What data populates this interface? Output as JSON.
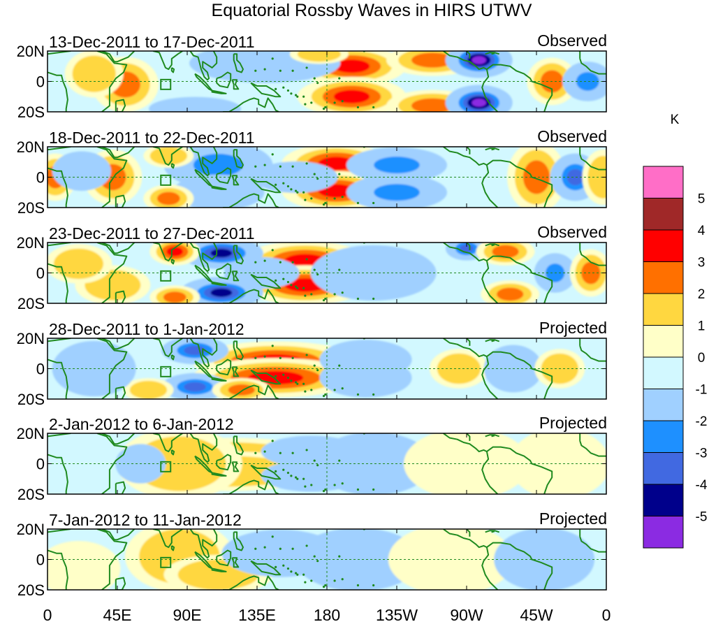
{
  "title": "Equatorial Rossby Waves in HIRS UTWV",
  "latitude_labels": [
    "20N",
    "0",
    "20S"
  ],
  "longitude_labels": [
    "0",
    "45E",
    "90E",
    "135E",
    "180",
    "135W",
    "90W",
    "45W",
    "0"
  ],
  "panels": [
    {
      "dates": "13-Dec-2011 to 17-Dec-2011",
      "status": "Observed"
    },
    {
      "dates": "18-Dec-2011 to 22-Dec-2011",
      "status": "Observed"
    },
    {
      "dates": "23-Dec-2011 to 27-Dec-2011",
      "status": "Observed"
    },
    {
      "dates": "28-Dec-2011 to 1-Jan-2012",
      "status": "Projected"
    },
    {
      "dates": "2-Jan-2012 to 6-Jan-2012",
      "status": "Projected"
    },
    {
      "dates": "7-Jan-2012 to 11-Jan-2012",
      "status": "Projected"
    }
  ],
  "colorbar": {
    "unit": "K",
    "tick_labels": [
      "5",
      "4",
      "3",
      "2",
      "1",
      "0",
      "-1",
      "-2",
      "-3",
      "-4",
      "-5"
    ],
    "levels": [
      {
        "color": "#ff6ec7"
      },
      {
        "color": "#a02828"
      },
      {
        "color": "#ff0000"
      },
      {
        "color": "#ff7000"
      },
      {
        "color": "#ffd740"
      },
      {
        "color": "#ffffc8"
      },
      {
        "color": "#d2f8ff"
      },
      {
        "color": "#a0d0ff"
      },
      {
        "color": "#1e90ff"
      },
      {
        "color": "#4169e1"
      },
      {
        "color": "#00008b"
      },
      {
        "color": "#8b2be2"
      }
    ]
  },
  "chart_data": {
    "type": "heatmap",
    "title": "Equatorial Rossby Waves in HIRS UTWV",
    "units": "K",
    "lon_range": [
      0,
      360
    ],
    "lat_range": [
      -20,
      20
    ],
    "contour_levels": [
      -5,
      -4,
      -3,
      -2,
      -1,
      0,
      1,
      2,
      3,
      4,
      5
    ],
    "anomaly_centers_note": "approximate centers of anomaly blobs: lon (deg east), lat (deg), value (K), width/height in degrees",
    "panels": [
      {
        "label": "13-Dec-2011 to 17-Dec-2011",
        "status": "Observed",
        "blobs": [
          {
            "lon": 196,
            "lat": 10,
            "v": 3.4,
            "w": 26,
            "h": 10
          },
          {
            "lon": 196,
            "lat": -10,
            "v": 3.3,
            "w": 26,
            "h": 10
          },
          {
            "lon": 248,
            "lat": 14,
            "v": 2.2,
            "w": 22,
            "h": 8
          },
          {
            "lon": 248,
            "lat": -16,
            "v": 2.0,
            "w": 22,
            "h": 8
          },
          {
            "lon": 278,
            "lat": 14,
            "v": -5,
            "w": 16,
            "h": 9
          },
          {
            "lon": 278,
            "lat": -14,
            "v": -5,
            "w": 16,
            "h": 9
          },
          {
            "lon": 325,
            "lat": 0,
            "v": 2.5,
            "w": 12,
            "h": 12
          },
          {
            "lon": 348,
            "lat": 0,
            "v": -2.2,
            "w": 12,
            "h": 10
          },
          {
            "lon": 50,
            "lat": -2,
            "v": 2.6,
            "w": 16,
            "h": 14
          },
          {
            "lon": 30,
            "lat": 5,
            "v": 1.3,
            "w": 14,
            "h": 12
          },
          {
            "lon": 95,
            "lat": -18,
            "v": -1.4,
            "w": 22,
            "h": 6
          },
          {
            "lon": 140,
            "lat": 12,
            "v": -1.2,
            "w": 36,
            "h": 10
          },
          {
            "lon": 175,
            "lat": 18,
            "v": 1.2,
            "w": 14,
            "h": 5
          }
        ]
      },
      {
        "label": "18-Dec-2011 to 22-Dec-2011",
        "status": "Observed",
        "blobs": [
          {
            "lon": 186,
            "lat": 9,
            "v": 3.6,
            "w": 26,
            "h": 10
          },
          {
            "lon": 186,
            "lat": -9,
            "v": 3.5,
            "w": 26,
            "h": 10
          },
          {
            "lon": 160,
            "lat": 0,
            "v": -1.5,
            "w": 20,
            "h": 8
          },
          {
            "lon": 225,
            "lat": 8,
            "v": -2.2,
            "w": 24,
            "h": 9
          },
          {
            "lon": 225,
            "lat": -10,
            "v": -2.3,
            "w": 24,
            "h": 9
          },
          {
            "lon": 315,
            "lat": 0,
            "v": 2.2,
            "w": 14,
            "h": 18
          },
          {
            "lon": 340,
            "lat": 0,
            "v": -3.2,
            "w": 12,
            "h": 12
          },
          {
            "lon": 358,
            "lat": 0,
            "v": 1.8,
            "w": 10,
            "h": 14
          },
          {
            "lon": 42,
            "lat": 0,
            "v": 2.4,
            "w": 14,
            "h": 14
          },
          {
            "lon": 5,
            "lat": 0,
            "v": 2.0,
            "w": 10,
            "h": 12
          },
          {
            "lon": 22,
            "lat": 4,
            "v": -1.4,
            "w": 14,
            "h": 10
          },
          {
            "lon": 110,
            "lat": 8,
            "v": -2.2,
            "w": 26,
            "h": 12
          },
          {
            "lon": 110,
            "lat": -10,
            "v": -1.8,
            "w": 22,
            "h": 9
          },
          {
            "lon": 78,
            "lat": -14,
            "v": 2.0,
            "w": 12,
            "h": 7
          },
          {
            "lon": 78,
            "lat": 14,
            "v": 1.5,
            "w": 12,
            "h": 6
          }
        ]
      },
      {
        "label": "23-Dec-2011 to 27-Dec-2011",
        "status": "Observed",
        "blobs": [
          {
            "lon": 166,
            "lat": 8,
            "v": 3.7,
            "w": 30,
            "h": 10
          },
          {
            "lon": 166,
            "lat": -8,
            "v": 3.6,
            "w": 30,
            "h": 10
          },
          {
            "lon": 112,
            "lat": 13,
            "v": -4.3,
            "w": 20,
            "h": 8
          },
          {
            "lon": 112,
            "lat": -13,
            "v": -4.2,
            "w": 20,
            "h": 8
          },
          {
            "lon": 82,
            "lat": 14,
            "v": 3.0,
            "w": 12,
            "h": 7
          },
          {
            "lon": 82,
            "lat": -16,
            "v": 2.6,
            "w": 12,
            "h": 6
          },
          {
            "lon": 138,
            "lat": 0,
            "v": -1.4,
            "w": 18,
            "h": 8
          },
          {
            "lon": 210,
            "lat": 0,
            "v": -1.3,
            "w": 30,
            "h": 14
          },
          {
            "lon": 270,
            "lat": 16,
            "v": -3.0,
            "w": 10,
            "h": 6
          },
          {
            "lon": 295,
            "lat": 14,
            "v": 2.6,
            "w": 14,
            "h": 7
          },
          {
            "lon": 298,
            "lat": -14,
            "v": 2.4,
            "w": 14,
            "h": 7
          },
          {
            "lon": 327,
            "lat": 0,
            "v": -2.8,
            "w": 10,
            "h": 10
          },
          {
            "lon": 350,
            "lat": 0,
            "v": 2.8,
            "w": 10,
            "h": 12
          },
          {
            "lon": 42,
            "lat": -8,
            "v": 1.5,
            "w": 18,
            "h": 10
          },
          {
            "lon": 20,
            "lat": 6,
            "v": 1.3,
            "w": 16,
            "h": 10
          }
        ]
      },
      {
        "label": "28-Dec-2011 to 1-Jan-2012",
        "status": "Projected",
        "blobs": [
          {
            "lon": 147,
            "lat": 5,
            "v": 3.4,
            "w": 40,
            "h": 10
          },
          {
            "lon": 147,
            "lat": -6,
            "v": 3.3,
            "w": 40,
            "h": 10
          },
          {
            "lon": 95,
            "lat": 12,
            "v": -3.0,
            "w": 16,
            "h": 7
          },
          {
            "lon": 95,
            "lat": -12,
            "v": -3.0,
            "w": 16,
            "h": 7
          },
          {
            "lon": 125,
            "lat": -14,
            "v": 2.2,
            "w": 14,
            "h": 6
          },
          {
            "lon": 65,
            "lat": -14,
            "v": 1.6,
            "w": 12,
            "h": 6
          },
          {
            "lon": 205,
            "lat": 6,
            "v": -1.8,
            "w": 22,
            "h": 10
          },
          {
            "lon": 205,
            "lat": -6,
            "v": -1.8,
            "w": 22,
            "h": 10
          },
          {
            "lon": 265,
            "lat": 0,
            "v": 1.2,
            "w": 14,
            "h": 10
          },
          {
            "lon": 300,
            "lat": 0,
            "v": -1.4,
            "w": 14,
            "h": 12
          },
          {
            "lon": 330,
            "lat": 0,
            "v": 1.2,
            "w": 12,
            "h": 10
          },
          {
            "lon": 30,
            "lat": 0,
            "v": -1.0,
            "w": 20,
            "h": 14
          }
        ]
      },
      {
        "label": "2-Jan-2012 to 6-Jan-2012",
        "status": "Projected",
        "blobs": [
          {
            "lon": 120,
            "lat": 4,
            "v": 1.8,
            "w": 45,
            "h": 10
          },
          {
            "lon": 118,
            "lat": -5,
            "v": 1.9,
            "w": 45,
            "h": 10
          },
          {
            "lon": 85,
            "lat": 0,
            "v": 1.3,
            "w": 30,
            "h": 18
          },
          {
            "lon": 170,
            "lat": 8,
            "v": -1.2,
            "w": 24,
            "h": 8
          },
          {
            "lon": 170,
            "lat": -8,
            "v": -1.2,
            "w": 24,
            "h": 8
          },
          {
            "lon": 60,
            "lat": 0,
            "v": -1.2,
            "w": 12,
            "h": 10
          },
          {
            "lon": 210,
            "lat": 0,
            "v": -0.9,
            "w": 28,
            "h": 16
          },
          {
            "lon": 270,
            "lat": 0,
            "v": 0.8,
            "w": 30,
            "h": 18
          },
          {
            "lon": 330,
            "lat": 0,
            "v": 0.9,
            "w": 24,
            "h": 18
          }
        ]
      },
      {
        "label": "7-Jan-2012 to 11-Jan-2012",
        "status": "Projected",
        "blobs": [
          {
            "lon": 85,
            "lat": 2,
            "v": 1.8,
            "w": 26,
            "h": 18
          },
          {
            "lon": 110,
            "lat": -10,
            "v": 1.4,
            "w": 26,
            "h": 10
          },
          {
            "lon": 150,
            "lat": 4,
            "v": -1.1,
            "w": 28,
            "h": 12
          },
          {
            "lon": 200,
            "lat": 0,
            "v": -0.9,
            "w": 30,
            "h": 16
          },
          {
            "lon": 260,
            "lat": 0,
            "v": 0.9,
            "w": 30,
            "h": 18
          },
          {
            "lon": 320,
            "lat": 0,
            "v": -0.8,
            "w": 24,
            "h": 16
          },
          {
            "lon": 20,
            "lat": -6,
            "v": 0.8,
            "w": 20,
            "h": 14
          }
        ]
      }
    ]
  }
}
